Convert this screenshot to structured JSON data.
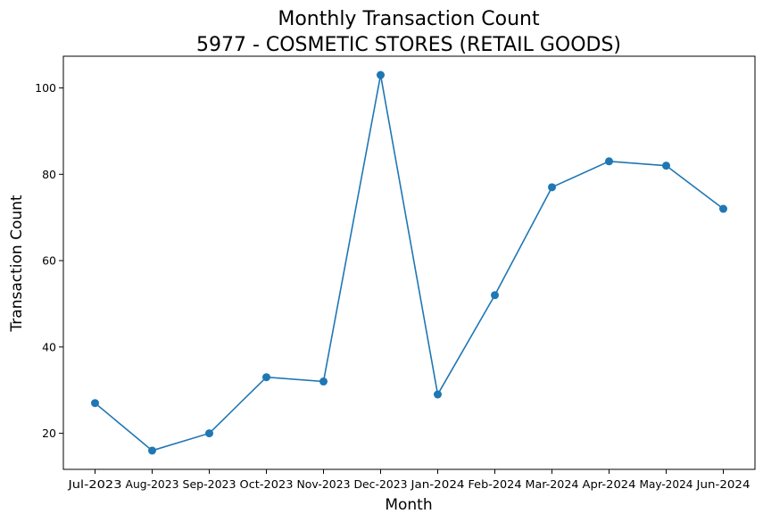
{
  "chart_data": {
    "type": "line",
    "title": "Monthly Transaction Count",
    "subtitle": "5977 - COSMETIC STORES (RETAIL GOODS)",
    "xlabel": "Month",
    "ylabel": "Transaction Count",
    "categories": [
      "Jul-2023",
      "Aug-2023",
      "Sep-2023",
      "Oct-2023",
      "Nov-2023",
      "Dec-2023",
      "Jan-2024",
      "Feb-2024",
      "Mar-2024",
      "Apr-2024",
      "May-2024",
      "Jun-2024"
    ],
    "series": [
      {
        "values": [
          27,
          16,
          20,
          33,
          32,
          103,
          29,
          52,
          77,
          83,
          82,
          72
        ]
      }
    ],
    "ylim": [
      11.65,
      107.35
    ],
    "yticks": [
      20,
      40,
      60,
      80,
      100
    ],
    "grid": false,
    "color": "#1f77b4"
  }
}
